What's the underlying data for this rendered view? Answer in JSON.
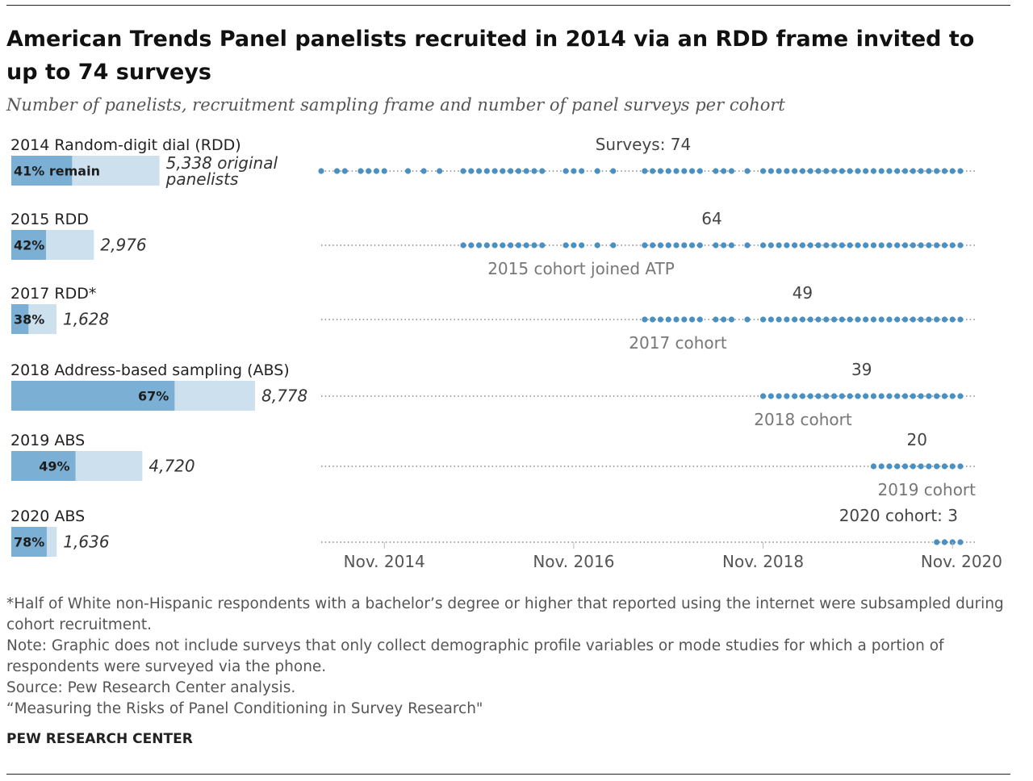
{
  "title": "American Trends Panel panelists recruited in 2014 via an RDD frame invited to up to 74 surveys",
  "subtitle": "Number of panelists, recruitment sampling frame and number of panel surveys per cohort",
  "colors": {
    "remain": "#7bafd4",
    "original": "#cde0ee",
    "dot": "#4a90c0",
    "dotted_line": "#888888"
  },
  "chart_data": {
    "type": "bar",
    "categories": [
      "2014 Random-digit dial (RDD)",
      "2015 RDD",
      "2017 RDD*",
      "2018 Address-based sampling (ABS)",
      "2019 ABS",
      "2020 ABS"
    ],
    "series": [
      {
        "name": "remain",
        "values": [
          41,
          42,
          38,
          67,
          49,
          78
        ],
        "unit": "%"
      },
      {
        "name": "original panelists",
        "values": [
          5338,
          2976,
          1628,
          8778,
          4720,
          1636
        ]
      }
    ],
    "pct_labels": [
      "41% remain",
      "42%",
      "38%",
      "67%",
      "49%",
      "78%"
    ],
    "count_labels": [
      "5,338 original panelists",
      "2,976",
      "1,628",
      "8,778",
      "4,720",
      "1,636"
    ],
    "surveys": [
      74,
      64,
      49,
      39,
      20,
      3
    ],
    "survey_labels": [
      "Surveys: 74",
      "64",
      "49",
      "39",
      "20",
      "2020 cohort: 3"
    ],
    "join_labels": [
      "",
      "2015 cohort joined ATP",
      "2017 cohort",
      "2018 cohort",
      "2019 cohort",
      ""
    ],
    "cohort_start": [
      "2014-03",
      "2015-09",
      "2017-08",
      "2018-11",
      "2020-01",
      "2020-09"
    ],
    "timeline": [
      "2014-03",
      "2014-05",
      "2014-06",
      "2014-08",
      "2014-09",
      "2014-10",
      "2014-11",
      "2015-02",
      "2015-04",
      "2015-06",
      "2015-09",
      "2015-10",
      "2015-11",
      "2015-12",
      "2016-01",
      "2016-02",
      "2016-03",
      "2016-04",
      "2016-05",
      "2016-06",
      "2016-07",
      "2016-10",
      "2016-11",
      "2016-12",
      "2017-02",
      "2017-04",
      "2017-08",
      "2017-09",
      "2017-10",
      "2017-11",
      "2017-12",
      "2018-01",
      "2018-02",
      "2018-03",
      "2018-05",
      "2018-06",
      "2018-07",
      "2018-09",
      "2018-11",
      "2018-12",
      "2019-01",
      "2019-02",
      "2019-03",
      "2019-04",
      "2019-05",
      "2019-06",
      "2019-07",
      "2019-08",
      "2019-09",
      "2019-10",
      "2019-11",
      "2019-12",
      "2020-01",
      "2020-02",
      "2020-03",
      "2020-04",
      "2020-05",
      "2020-06",
      "2020-07",
      "2020-08",
      "2020-09",
      "2020-10",
      "2020-11",
      "2020-12"
    ],
    "xticks": [
      "2014-11",
      "2016-11",
      "2018-11",
      "2020-11"
    ],
    "xtick_labels": [
      "Nov. 2014",
      "Nov. 2016",
      "Nov. 2018",
      "Nov. 2020"
    ],
    "xlim": [
      "2014-03",
      "2020-12"
    ]
  },
  "footnotes": [
    "*Half of White non-Hispanic respondents with a bachelor’s degree or higher that reported using the internet were subsampled during cohort recruitment.",
    "Note: Graphic does not include surveys that only collect demographic profile variables or mode studies for which a portion of respondents were surveyed via the phone.",
    "Source: Pew Research Center analysis.",
    "“Measuring the Risks of Panel Conditioning in Survey Research\""
  ],
  "credit": "PEW RESEARCH CENTER"
}
